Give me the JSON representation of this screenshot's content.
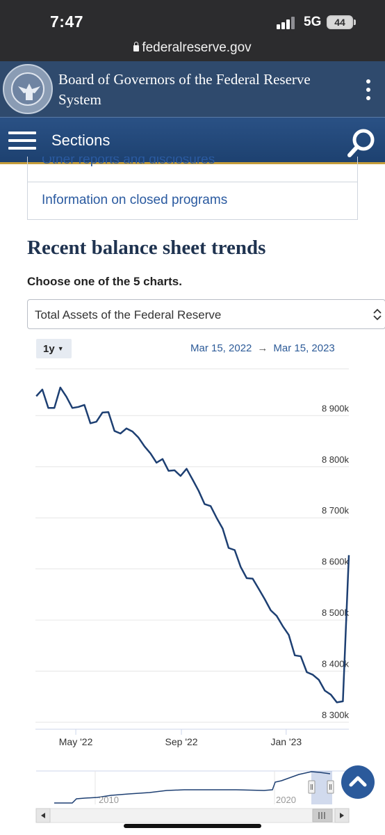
{
  "status_bar": {
    "time": "7:47",
    "network": "5G",
    "battery": "44"
  },
  "browser": {
    "url": "federalreserve.gov"
  },
  "site": {
    "title": "Board of Governors of the Federal Reserve System",
    "brand_color": "#2f4a6d"
  },
  "nav": {
    "sections_label": "Sections",
    "bar_color": "#1d4170",
    "accent_color": "#c59d3b"
  },
  "programs": {
    "clipped_item": "Other reports and disclosures",
    "link": "Information on closed programs"
  },
  "balance_sheet": {
    "heading": "Recent balance sheet trends",
    "prompt": "Choose one of the 5 charts.",
    "selected_chart": "Total Assets of the Federal Reserve",
    "range_button": "1y",
    "date_from": "Mar 15, 2022",
    "date_arrow": "→",
    "date_to": "Mar 15, 2023"
  },
  "chart_data": {
    "type": "line",
    "title": "",
    "xlabel": "",
    "ylabel": "",
    "x_tick_labels": [
      "May '22",
      "Sep '22",
      "Jan '23"
    ],
    "y_tick_labels": [
      "8 300k",
      "8 400k",
      "8 500k",
      "8 600k",
      "8 700k",
      "8 800k",
      "8 900k"
    ],
    "ylim": [
      8270,
      8975
    ],
    "grid": true,
    "line_color": "#1d3f72",
    "x": [
      "2022-03-16",
      "2022-03-23",
      "2022-03-30",
      "2022-04-06",
      "2022-04-13",
      "2022-04-20",
      "2022-04-27",
      "2022-05-04",
      "2022-05-11",
      "2022-05-18",
      "2022-05-25",
      "2022-06-01",
      "2022-06-08",
      "2022-06-15",
      "2022-06-22",
      "2022-06-29",
      "2022-07-06",
      "2022-07-13",
      "2022-07-20",
      "2022-07-27",
      "2022-08-03",
      "2022-08-10",
      "2022-08-17",
      "2022-08-24",
      "2022-08-31",
      "2022-09-07",
      "2022-09-14",
      "2022-09-21",
      "2022-09-28",
      "2022-10-05",
      "2022-10-12",
      "2022-10-19",
      "2022-10-26",
      "2022-11-02",
      "2022-11-09",
      "2022-11-16",
      "2022-11-23",
      "2022-11-30",
      "2022-12-07",
      "2022-12-14",
      "2022-12-21",
      "2022-12-28",
      "2023-01-04",
      "2023-01-11",
      "2023-01-18",
      "2023-01-25",
      "2023-02-01",
      "2023-02-08",
      "2023-02-15",
      "2023-02-22",
      "2023-03-01",
      "2023-03-08",
      "2023-03-15"
    ],
    "values": [
      8938,
      8951,
      8915,
      8915,
      8955,
      8937,
      8915,
      8917,
      8921,
      8885,
      8888,
      8906,
      8907,
      8870,
      8865,
      8875,
      8869,
      8857,
      8840,
      8826,
      8808,
      8815,
      8792,
      8793,
      8782,
      8796,
      8775,
      8753,
      8727,
      8723,
      8700,
      8679,
      8641,
      8637,
      8604,
      8582,
      8581,
      8561,
      8541,
      8519,
      8508,
      8488,
      8471,
      8431,
      8429,
      8398,
      8393,
      8383,
      8362,
      8354,
      8339,
      8341,
      8627
    ],
    "navigator": {
      "x_tick_labels": [
        "2010",
        "2020"
      ],
      "selection": "last 1y"
    }
  }
}
